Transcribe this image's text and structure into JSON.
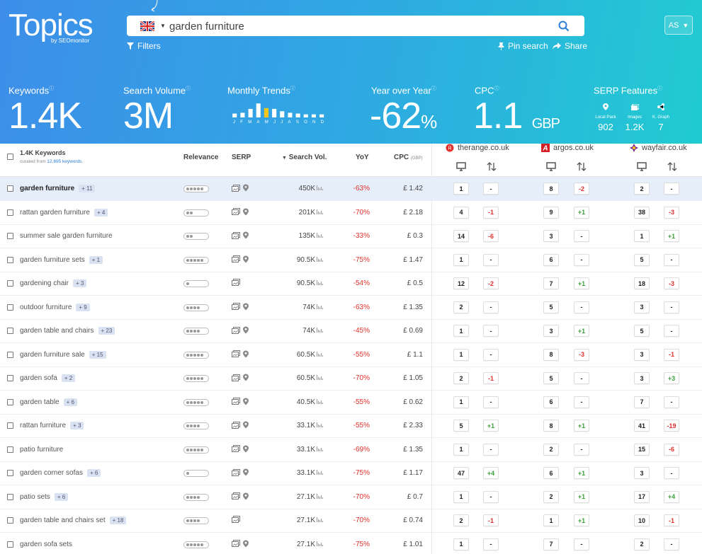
{
  "brand": {
    "logo_text": "Topics",
    "logo_sub": "by SEOmonitor"
  },
  "search": {
    "value": "garden furniture",
    "flag": "uk-flag-icon"
  },
  "toolbar": {
    "filters_label": "Filters",
    "pin_label": "Pin search",
    "share_label": "Share",
    "avatar_initials": "AS"
  },
  "metrics": {
    "keywords": {
      "label": "Keywords",
      "value": "1.4K"
    },
    "search_volume": {
      "label": "Search Volume",
      "value": "3M"
    },
    "monthly_trends": {
      "label": "Monthly Trends",
      "months": [
        "J",
        "F",
        "M",
        "A",
        "M",
        "J",
        "J",
        "A",
        "S",
        "O",
        "N",
        "D"
      ],
      "levels": [
        0.25,
        0.3,
        0.55,
        0.9,
        0.6,
        0.55,
        0.4,
        0.3,
        0.25,
        0.2,
        0.2,
        0.2
      ],
      "highlight_index": 4
    },
    "yoy": {
      "label": "Year over Year",
      "value": "-62",
      "unit": "%"
    },
    "cpc": {
      "label": "CPC",
      "value": "1.1",
      "unit": "GBP"
    },
    "serp_features": {
      "label": "SERP Features",
      "items": [
        {
          "icon": "map-pin-icon",
          "label": "Local Pack",
          "value": "902"
        },
        {
          "icon": "images-icon",
          "label": "Images",
          "value": "1.2K"
        },
        {
          "icon": "share-icon",
          "label": "K. Graph",
          "value": "7"
        }
      ]
    }
  },
  "table": {
    "keywords_title": "1.4K Keywords",
    "curated_prefix": "curated from ",
    "curated_link": "12,695 keywords.",
    "headers": {
      "relevance": "Relevance",
      "serp": "SERP",
      "search_vol": "Search Vol.",
      "yoy": "YoY",
      "cpc": "CPC",
      "cpc_unit": "(GBP)"
    },
    "domains": [
      {
        "name": "therange.co.uk",
        "color": "#e0302c"
      },
      {
        "name": "argos.co.uk",
        "color": "#d42127"
      },
      {
        "name": "wayfair.co.uk",
        "color": "#7b2a8c"
      }
    ],
    "rows": [
      {
        "kw": "garden furniture",
        "badge": "+ 11",
        "rel": 5,
        "map": true,
        "vol": "450K",
        "yoy": "-63%",
        "cpc": "£ 1.42",
        "r": [
          "1",
          "-",
          "8",
          "-2",
          "2",
          "-"
        ]
      },
      {
        "kw": "rattan garden furniture",
        "badge": "+ 4",
        "rel": 2,
        "map": true,
        "vol": "201K",
        "yoy": "-70%",
        "cpc": "£ 2.18",
        "r": [
          "4",
          "-1",
          "9",
          "+1",
          "38",
          "-3"
        ]
      },
      {
        "kw": "summer sale garden furniture",
        "badge": "",
        "rel": 2,
        "map": true,
        "vol": "135K",
        "yoy": "-33%",
        "cpc": "£ 0.3",
        "r": [
          "14",
          "-6",
          "3",
          "-",
          "1",
          "+1"
        ]
      },
      {
        "kw": "garden furniture sets",
        "badge": "+ 1",
        "rel": 5,
        "map": true,
        "vol": "90.5K",
        "yoy": "-75%",
        "cpc": "£ 1.47",
        "r": [
          "1",
          "-",
          "6",
          "-",
          "5",
          "-"
        ]
      },
      {
        "kw": "gardening chair",
        "badge": "+ 3",
        "rel": 1,
        "map": false,
        "vol": "90.5K",
        "yoy": "-54%",
        "cpc": "£ 0.5",
        "r": [
          "12",
          "-2",
          "7",
          "+1",
          "18",
          "-3"
        ]
      },
      {
        "kw": "outdoor furniture",
        "badge": "+ 9",
        "rel": 4,
        "map": true,
        "vol": "74K",
        "yoy": "-63%",
        "cpc": "£ 1.35",
        "r": [
          "2",
          "-",
          "5",
          "-",
          "3",
          "-"
        ]
      },
      {
        "kw": "garden table and chairs",
        "badge": "+ 23",
        "rel": 4,
        "map": true,
        "vol": "74K",
        "yoy": "-45%",
        "cpc": "£ 0.69",
        "r": [
          "1",
          "-",
          "3",
          "+1",
          "5",
          "-"
        ]
      },
      {
        "kw": "garden furniture sale",
        "badge": "+ 15",
        "rel": 5,
        "map": true,
        "vol": "60.5K",
        "yoy": "-55%",
        "cpc": "£ 1.1",
        "r": [
          "1",
          "-",
          "8",
          "-3",
          "3",
          "-1"
        ]
      },
      {
        "kw": "garden sofa",
        "badge": "+ 2",
        "rel": 5,
        "map": true,
        "vol": "60.5K",
        "yoy": "-70%",
        "cpc": "£ 1.05",
        "r": [
          "2",
          "-1",
          "5",
          "-",
          "3",
          "+3"
        ]
      },
      {
        "kw": "garden table",
        "badge": "+ 6",
        "rel": 5,
        "map": true,
        "vol": "40.5K",
        "yoy": "-55%",
        "cpc": "£ 0.62",
        "r": [
          "1",
          "-",
          "6",
          "-",
          "7",
          "-"
        ]
      },
      {
        "kw": "rattan furniture",
        "badge": "+ 3",
        "rel": 4,
        "map": true,
        "vol": "33.1K",
        "yoy": "-55%",
        "cpc": "£ 2.33",
        "r": [
          "5",
          "+1",
          "8",
          "+1",
          "41",
          "-19"
        ]
      },
      {
        "kw": "patio furniture",
        "badge": "",
        "rel": 5,
        "map": true,
        "vol": "33.1K",
        "yoy": "-69%",
        "cpc": "£ 1.35",
        "r": [
          "1",
          "-",
          "2",
          "-",
          "15",
          "-6"
        ]
      },
      {
        "kw": "garden corner sofas",
        "badge": "+ 6",
        "rel": 1,
        "map": true,
        "vol": "33.1K",
        "yoy": "-75%",
        "cpc": "£ 1.17",
        "r": [
          "47",
          "+4",
          "6",
          "+1",
          "3",
          "-"
        ]
      },
      {
        "kw": "patio sets",
        "badge": "+ 6",
        "rel": 4,
        "map": true,
        "vol": "27.1K",
        "yoy": "-70%",
        "cpc": "£ 0.7",
        "r": [
          "1",
          "-",
          "2",
          "+1",
          "17",
          "+4"
        ]
      },
      {
        "kw": "garden table and chairs set",
        "badge": "+ 18",
        "rel": 4,
        "map": false,
        "vol": "27.1K",
        "yoy": "-70%",
        "cpc": "£ 0.74",
        "r": [
          "2",
          "-1",
          "1",
          "+1",
          "10",
          "-1"
        ]
      },
      {
        "kw": "garden sofa sets",
        "badge": "",
        "rel": 5,
        "map": true,
        "vol": "27.1K",
        "yoy": "-75%",
        "cpc": "£ 1.01",
        "r": [
          "1",
          "-",
          "7",
          "-",
          "2",
          "-"
        ]
      }
    ]
  }
}
